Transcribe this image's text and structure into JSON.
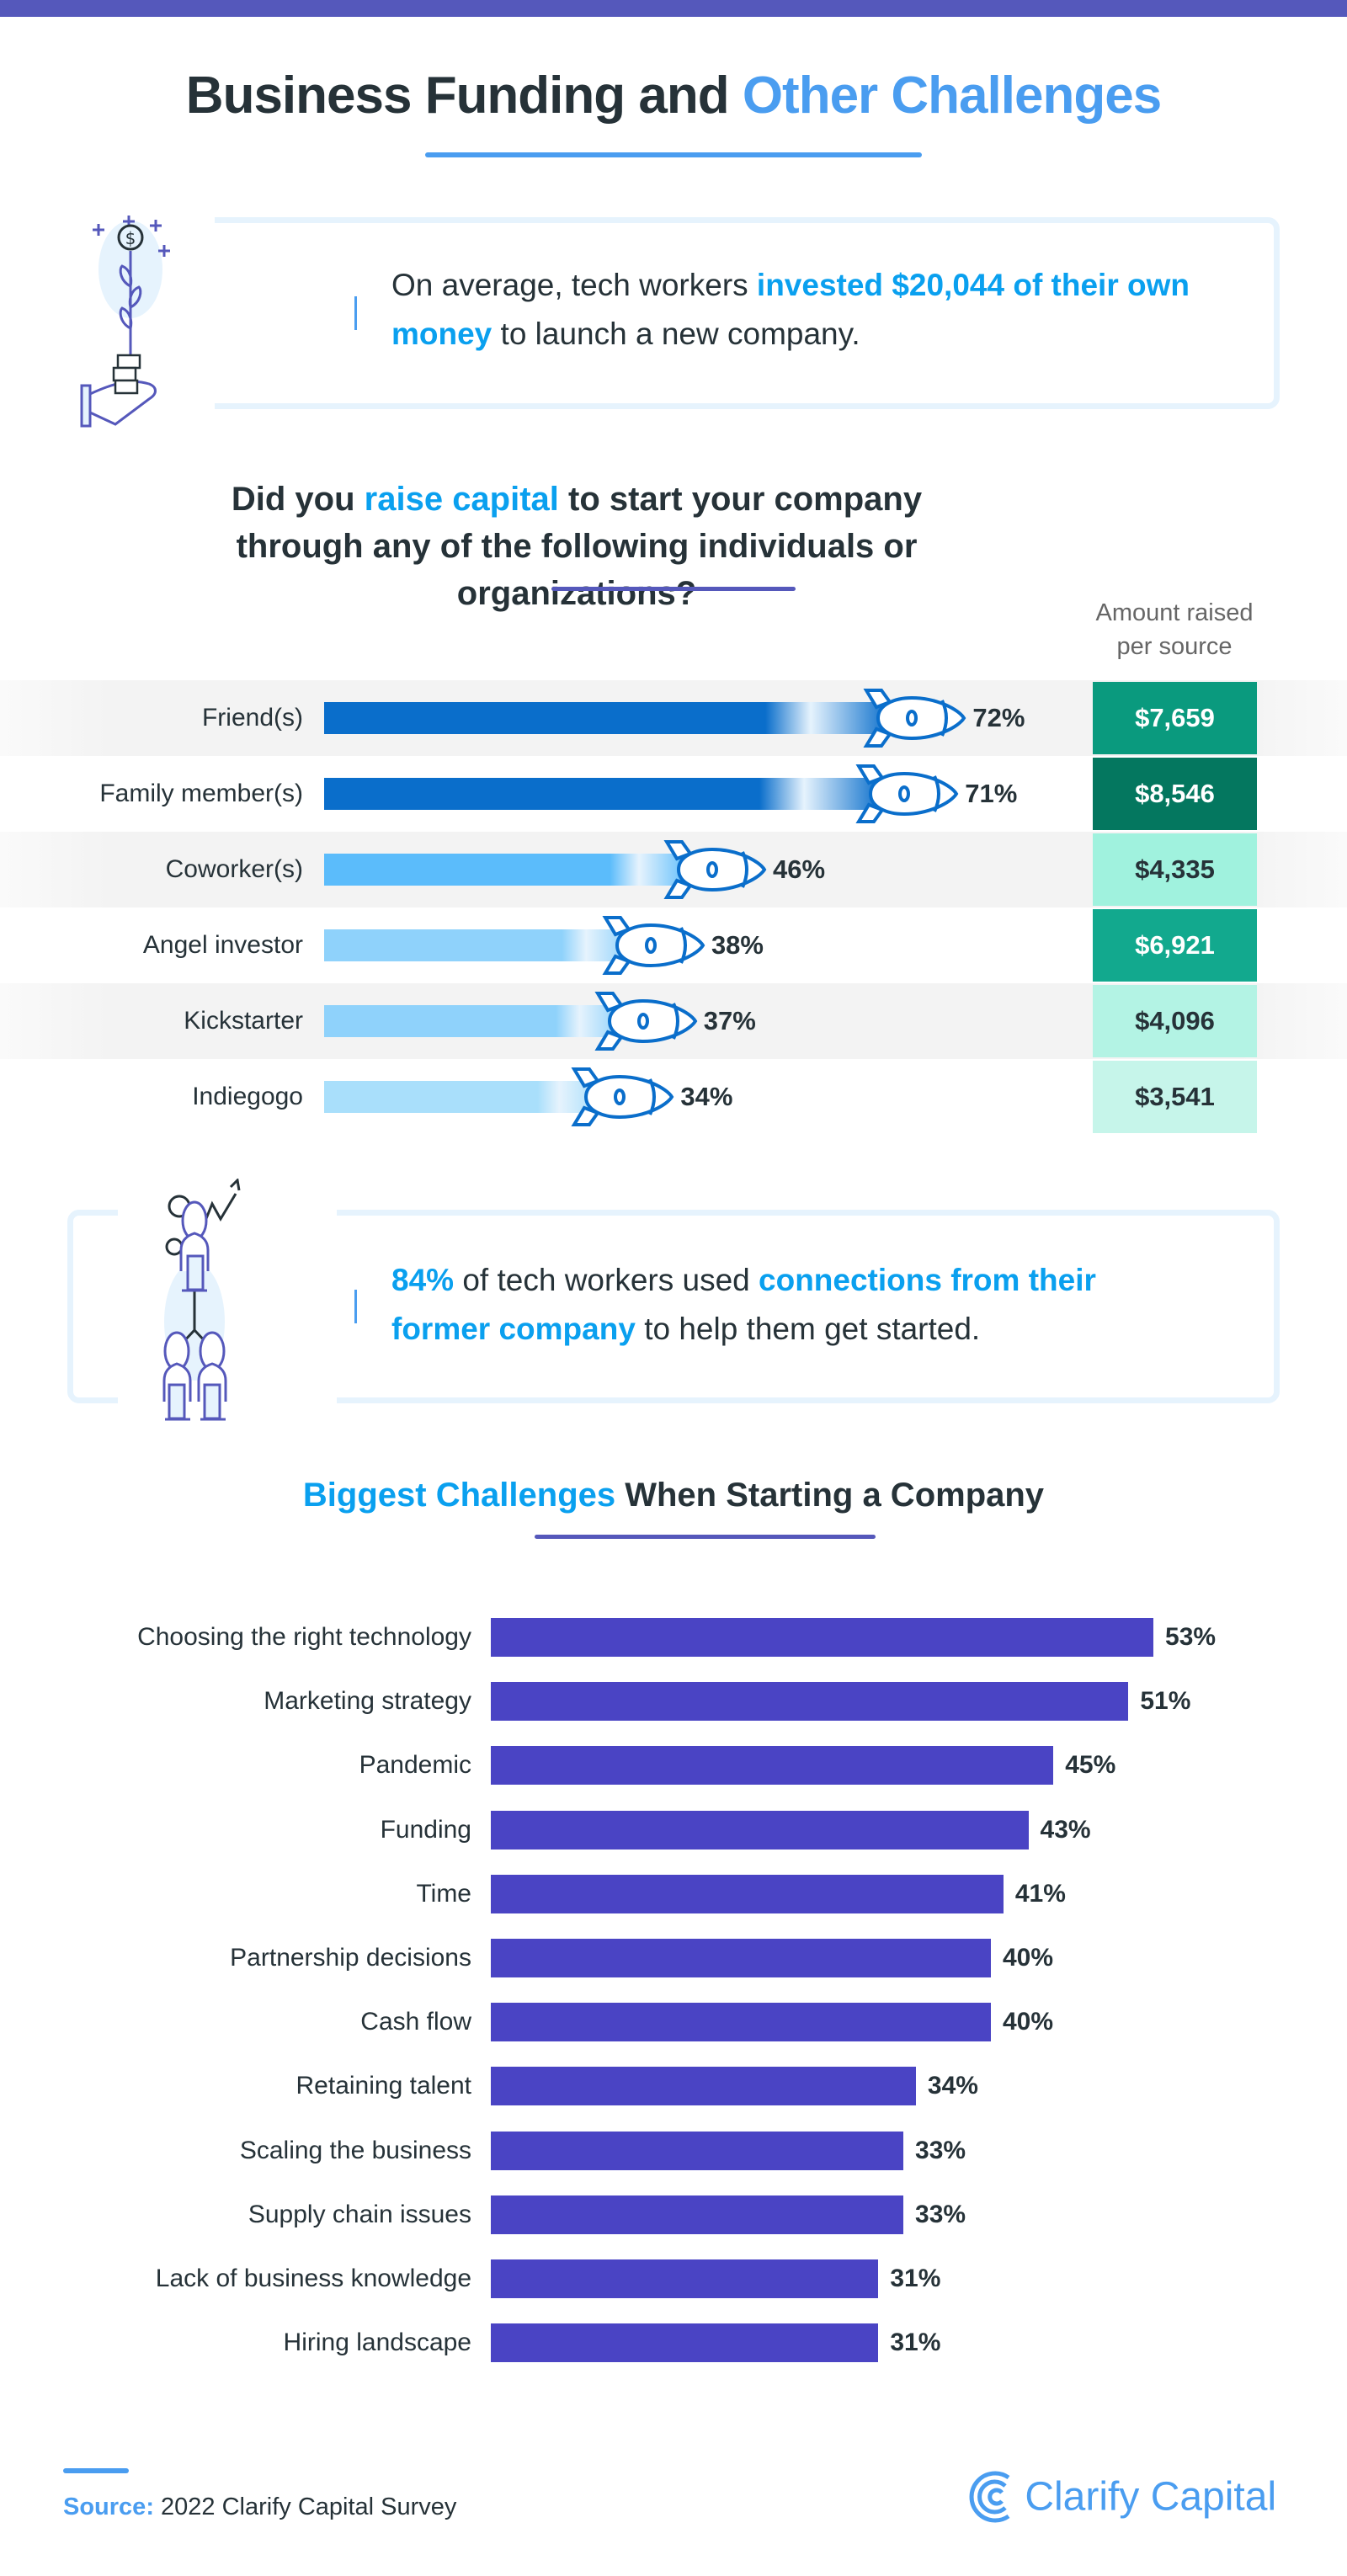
{
  "header": {
    "title_part1": "Business Funding and ",
    "title_part2": "Other Challenges"
  },
  "colors": {
    "top_bar": "#5558bb",
    "accent_blue": "#4a9df0",
    "highlight": "#0aa0ef",
    "challenge_bar": "#4a44c4"
  },
  "stat1": {
    "pre": "On average, tech workers ",
    "highlight": "invested $20,044 of their own money",
    "post": " to launch a new company.",
    "icon": "hand-coins-plant-icon"
  },
  "question": {
    "pre": "Did you ",
    "highlight": "raise capital",
    "post": " to start your company through any of the following individuals or organizations?"
  },
  "stat2": {
    "highlight1": "84%",
    "mid": " of tech workers used ",
    "highlight2": "connections from their former company",
    "post": " to help them get started.",
    "icon": "network-people-icon"
  },
  "challenges_title": {
    "highlight": "Biggest Challenges",
    "rest": " When Starting a Company"
  },
  "chart_data": [
    {
      "type": "bar",
      "orientation": "horizontal",
      "title": "",
      "categories": [
        "Friend(s)",
        "Family member(s)",
        "Coworker(s)",
        "Angel investor",
        "Kickstarter",
        "Indiegogo"
      ],
      "values": [
        72,
        71,
        46,
        38,
        37,
        34
      ],
      "value_labels": [
        "72%",
        "71%",
        "46%",
        "38%",
        "37%",
        "34%"
      ],
      "bar_colors": [
        "#0a6ecb",
        "#0a6ecb",
        "#5bbcfb",
        "#8fd2fb",
        "#8fd2fb",
        "#a9dffb"
      ],
      "marker_icon": "rocket-icon",
      "side_column": {
        "header": "Amount raised per source",
        "values": [
          "$7,659",
          "$8,546",
          "$4,335",
          "$6,921",
          "$4,096",
          "$3,541"
        ],
        "colors": [
          "#0a9a7e",
          "#04775f",
          "#a0f2de",
          "#12a98e",
          "#b3f3e4",
          "#c6f5ea"
        ],
        "text_colors": [
          "#ffffff",
          "#ffffff",
          "#263238",
          "#ffffff",
          "#263238",
          "#263238"
        ]
      }
    },
    {
      "type": "bar",
      "orientation": "horizontal",
      "title": "Biggest Challenges When Starting a Company",
      "categories": [
        "Choosing the right technology",
        "Marketing strategy",
        "Pandemic",
        "Funding",
        "Time",
        "Partnership decisions",
        "Cash flow",
        "Retaining talent",
        "Scaling the business",
        "Supply chain issues",
        "Lack of business knowledge",
        "Hiring landscape"
      ],
      "values": [
        53,
        51,
        45,
        43,
        41,
        40,
        40,
        34,
        33,
        33,
        31,
        31
      ],
      "value_labels": [
        "53%",
        "51%",
        "45%",
        "43%",
        "41%",
        "40%",
        "40%",
        "34%",
        "33%",
        "33%",
        "31%",
        "31%"
      ]
    }
  ],
  "footer": {
    "source_label": "Source:",
    "source_text": " 2022 Clarify Capital Survey",
    "logo_text": "Clarify Capital",
    "logo_icon": "clarify-capital-logo-icon"
  }
}
